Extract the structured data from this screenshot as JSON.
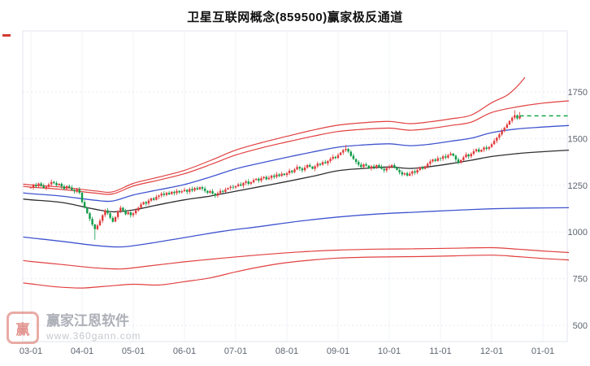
{
  "title": "卫星互联网概念(859500)赢家极反通道",
  "watermark": {
    "brand": "赢家江恩软件",
    "url": "www.360gann.com",
    "logo_text": "赢"
  },
  "chart_data": {
    "type": "candlestick",
    "title": "卫星互联网概念(859500)赢家极反通道",
    "symbol": "859500",
    "indicator": "赢家极反通道",
    "grid": "on",
    "y_ticks": [
      1750,
      1500,
      1250,
      1000,
      750,
      500
    ],
    "ylim": [
      500,
      1750
    ],
    "x_ticks": [
      {
        "label": "03-01",
        "index": 0
      },
      {
        "label": "04-01",
        "index": 20
      },
      {
        "label": "05-01",
        "index": 40
      },
      {
        "label": "06-01",
        "index": 60
      },
      {
        "label": "07-01",
        "index": 80
      },
      {
        "label": "08-01",
        "index": 100
      },
      {
        "label": "09-01",
        "index": 120
      },
      {
        "label": "10-01",
        "index": 140
      },
      {
        "label": "11-01",
        "index": 160
      },
      {
        "label": "12-01",
        "index": 180
      },
      {
        "label": "01-01",
        "index": 200
      }
    ],
    "colors": {
      "up": "#e03a3a",
      "down": "#0f9b47",
      "line_red": "#e24040",
      "line_blue": "#4055cf",
      "line_black": "#2f2f2f",
      "target_green": "#00a13c",
      "grid_v": "#f2f3f7",
      "grid_h": "#e8eaf2"
    },
    "candles": {
      "first_open": 1235,
      "wick_base": 3,
      "wick_mod": 11,
      "closes": [
        1238,
        1252,
        1245,
        1260,
        1248,
        1236,
        1242,
        1255,
        1268,
        1262,
        1250,
        1258,
        1244,
        1232,
        1246,
        1238,
        1225,
        1218,
        1228,
        1210,
        1160,
        1130,
        1100,
        1070,
        1040,
        1015,
        1035,
        1060,
        1090,
        1115,
        1100,
        1075,
        1055,
        1080,
        1110,
        1130,
        1115,
        1095,
        1105,
        1090,
        1100,
        1115,
        1130,
        1148,
        1160,
        1152,
        1168,
        1180,
        1172,
        1188,
        1195,
        1205,
        1198,
        1210,
        1202,
        1215,
        1208,
        1220,
        1212,
        1218,
        1225,
        1215,
        1230,
        1222,
        1235,
        1228,
        1240,
        1232,
        1220,
        1210,
        1218,
        1205,
        1195,
        1208,
        1220,
        1215,
        1228,
        1235,
        1242,
        1238,
        1245,
        1255,
        1248,
        1262,
        1270,
        1258,
        1266,
        1278,
        1285,
        1275,
        1288,
        1295,
        1282,
        1290,
        1302,
        1295,
        1308,
        1300,
        1312,
        1305,
        1315,
        1328,
        1320,
        1335,
        1348,
        1340,
        1330,
        1345,
        1358,
        1350,
        1338,
        1352,
        1366,
        1360,
        1374,
        1368,
        1380,
        1392,
        1402,
        1396,
        1412,
        1425,
        1438,
        1445,
        1430,
        1408,
        1390,
        1375,
        1360,
        1348,
        1362,
        1355,
        1340,
        1352,
        1345,
        1358,
        1348,
        1338,
        1330,
        1342,
        1348,
        1358,
        1345,
        1332,
        1320,
        1308,
        1315,
        1302,
        1312,
        1325,
        1318,
        1332,
        1345,
        1338,
        1352,
        1365,
        1378,
        1388,
        1380,
        1395,
        1392,
        1405,
        1398,
        1412,
        1420,
        1408,
        1388,
        1372,
        1385,
        1400,
        1415,
        1405,
        1418,
        1432,
        1442,
        1430,
        1440,
        1452,
        1445,
        1455,
        1470,
        1488,
        1505,
        1522,
        1540,
        1558,
        1575,
        1595,
        1612,
        1625,
        1608,
        1622
      ],
      "special_wicks": {
        "25": {
          "low": 958
        },
        "123": {
          "high": 1466
        },
        "189": {
          "high": 1652
        },
        "191": {
          "high": 1642
        }
      }
    },
    "lines": [
      {
        "name": "upper-outer-resistance-line",
        "color": "#e24040",
        "width": 1.2,
        "points": [
          [
            -3,
            1256
          ],
          [
            0,
            1252
          ],
          [
            12,
            1240
          ],
          [
            25,
            1220
          ],
          [
            32,
            1215
          ],
          [
            40,
            1260
          ],
          [
            50,
            1294
          ],
          [
            60,
            1330
          ],
          [
            70,
            1382
          ],
          [
            80,
            1438
          ],
          [
            90,
            1478
          ],
          [
            100,
            1512
          ],
          [
            110,
            1545
          ],
          [
            120,
            1572
          ],
          [
            130,
            1585
          ],
          [
            140,
            1592
          ],
          [
            148,
            1580
          ],
          [
            156,
            1590
          ],
          [
            164,
            1606
          ],
          [
            172,
            1626
          ],
          [
            180,
            1692
          ],
          [
            186,
            1732
          ],
          [
            190,
            1780
          ],
          [
            193,
            1828
          ]
        ]
      },
      {
        "name": "upper-resistance-line",
        "color": "#e24040",
        "width": 1.2,
        "points": [
          [
            -3,
            1244
          ],
          [
            0,
            1240
          ],
          [
            12,
            1228
          ],
          [
            25,
            1208
          ],
          [
            32,
            1204
          ],
          [
            40,
            1246
          ],
          [
            50,
            1278
          ],
          [
            60,
            1312
          ],
          [
            70,
            1360
          ],
          [
            80,
            1412
          ],
          [
            90,
            1450
          ],
          [
            100,
            1482
          ],
          [
            110,
            1512
          ],
          [
            120,
            1538
          ],
          [
            130,
            1550
          ],
          [
            140,
            1556
          ],
          [
            148,
            1545
          ],
          [
            156,
            1554
          ],
          [
            164,
            1570
          ],
          [
            172,
            1588
          ],
          [
            180,
            1640
          ],
          [
            190,
            1670
          ],
          [
            200,
            1690
          ],
          [
            212,
            1702
          ]
        ]
      },
      {
        "name": "upper-rail-line",
        "color": "#4055cf",
        "width": 1.3,
        "points": [
          [
            -3,
            1209
          ],
          [
            0,
            1205
          ],
          [
            12,
            1192
          ],
          [
            25,
            1170
          ],
          [
            32,
            1166
          ],
          [
            40,
            1198
          ],
          [
            50,
            1226
          ],
          [
            60,
            1254
          ],
          [
            70,
            1294
          ],
          [
            80,
            1338
          ],
          [
            90,
            1370
          ],
          [
            100,
            1400
          ],
          [
            110,
            1428
          ],
          [
            120,
            1454
          ],
          [
            130,
            1466
          ],
          [
            140,
            1472
          ],
          [
            148,
            1462
          ],
          [
            156,
            1470
          ],
          [
            164,
            1486
          ],
          [
            172,
            1502
          ],
          [
            180,
            1532
          ],
          [
            190,
            1552
          ],
          [
            200,
            1562
          ],
          [
            212,
            1570
          ]
        ]
      },
      {
        "name": "life-line",
        "color": "#2f2f2f",
        "width": 1.3,
        "points": [
          [
            -3,
            1176
          ],
          [
            0,
            1172
          ],
          [
            12,
            1158
          ],
          [
            25,
            1122
          ],
          [
            32,
            1108
          ],
          [
            40,
            1118
          ],
          [
            50,
            1146
          ],
          [
            60,
            1172
          ],
          [
            70,
            1192
          ],
          [
            80,
            1218
          ],
          [
            90,
            1244
          ],
          [
            100,
            1270
          ],
          [
            110,
            1298
          ],
          [
            120,
            1328
          ],
          [
            130,
            1340
          ],
          [
            140,
            1348
          ],
          [
            148,
            1340
          ],
          [
            156,
            1350
          ],
          [
            164,
            1366
          ],
          [
            172,
            1384
          ],
          [
            180,
            1404
          ],
          [
            190,
            1420
          ],
          [
            200,
            1430
          ],
          [
            212,
            1438
          ]
        ]
      },
      {
        "name": "lower-rail-line",
        "color": "#4055cf",
        "width": 1.3,
        "points": [
          [
            -3,
            973
          ],
          [
            0,
            968
          ],
          [
            12,
            950
          ],
          [
            25,
            928
          ],
          [
            35,
            920
          ],
          [
            45,
            936
          ],
          [
            60,
            970
          ],
          [
            75,
            1004
          ],
          [
            90,
            1030
          ],
          [
            105,
            1058
          ],
          [
            120,
            1080
          ],
          [
            135,
            1096
          ],
          [
            150,
            1106
          ],
          [
            165,
            1116
          ],
          [
            180,
            1124
          ],
          [
            195,
            1128
          ],
          [
            212,
            1130
          ]
        ]
      },
      {
        "name": "lower-support-line",
        "color": "#e24040",
        "width": 1.2,
        "points": [
          [
            -3,
            847
          ],
          [
            0,
            842
          ],
          [
            12,
            826
          ],
          [
            25,
            808
          ],
          [
            35,
            802
          ],
          [
            45,
            816
          ],
          [
            60,
            840
          ],
          [
            75,
            860
          ],
          [
            90,
            878
          ],
          [
            105,
            893
          ],
          [
            120,
            903
          ],
          [
            135,
            908
          ],
          [
            150,
            910
          ],
          [
            165,
            913
          ],
          [
            180,
            916
          ],
          [
            190,
            908
          ],
          [
            200,
            898
          ],
          [
            212,
            890
          ]
        ]
      },
      {
        "name": "lower-outer-support-line",
        "color": "#e24040",
        "width": 1.2,
        "points": [
          [
            -3,
            727
          ],
          [
            0,
            722
          ],
          [
            10,
            706
          ],
          [
            20,
            700
          ],
          [
            30,
            710
          ],
          [
            40,
            720
          ],
          [
            50,
            716
          ],
          [
            60,
            734
          ],
          [
            70,
            754
          ],
          [
            80,
            786
          ],
          [
            90,
            814
          ],
          [
            100,
            836
          ],
          [
            110,
            850
          ],
          [
            120,
            860
          ],
          [
            135,
            866
          ],
          [
            150,
            868
          ],
          [
            165,
            872
          ],
          [
            180,
            876
          ],
          [
            190,
            868
          ],
          [
            200,
            858
          ],
          [
            212,
            850
          ]
        ]
      }
    ],
    "target_line": {
      "price": 1622,
      "from_index": 191,
      "color": "#00a13c",
      "dash": "5,4"
    }
  }
}
